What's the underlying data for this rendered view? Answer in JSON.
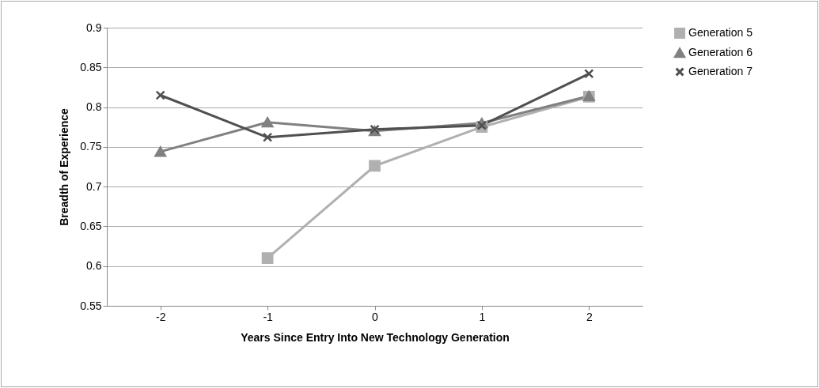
{
  "chart_data": {
    "type": "line",
    "xlabel": "Years Since Entry Into New Technology Generation",
    "ylabel": "Breadth of Experience",
    "categories": [
      "-2",
      "-1",
      "0",
      "1",
      "2"
    ],
    "series": [
      {
        "name": "Generation 5",
        "color": "#b0b0b0",
        "marker": "square",
        "values": [
          null,
          0.61,
          0.726,
          0.775,
          0.813
        ]
      },
      {
        "name": "Generation 6",
        "color": "#808080",
        "marker": "triangle",
        "values": [
          0.744,
          0.781,
          0.77,
          0.78,
          0.814
        ]
      },
      {
        "name": "Generation 7",
        "color": "#505050",
        "marker": "cross",
        "values": [
          0.815,
          0.762,
          0.772,
          0.777,
          0.842
        ]
      }
    ],
    "ylim": [
      0.55,
      0.9
    ],
    "yticks": [
      0.55,
      0.6,
      0.65,
      0.7,
      0.75,
      0.8,
      0.85,
      0.9
    ],
    "grid": "y",
    "legend": "right",
    "line_style": "solid"
  }
}
